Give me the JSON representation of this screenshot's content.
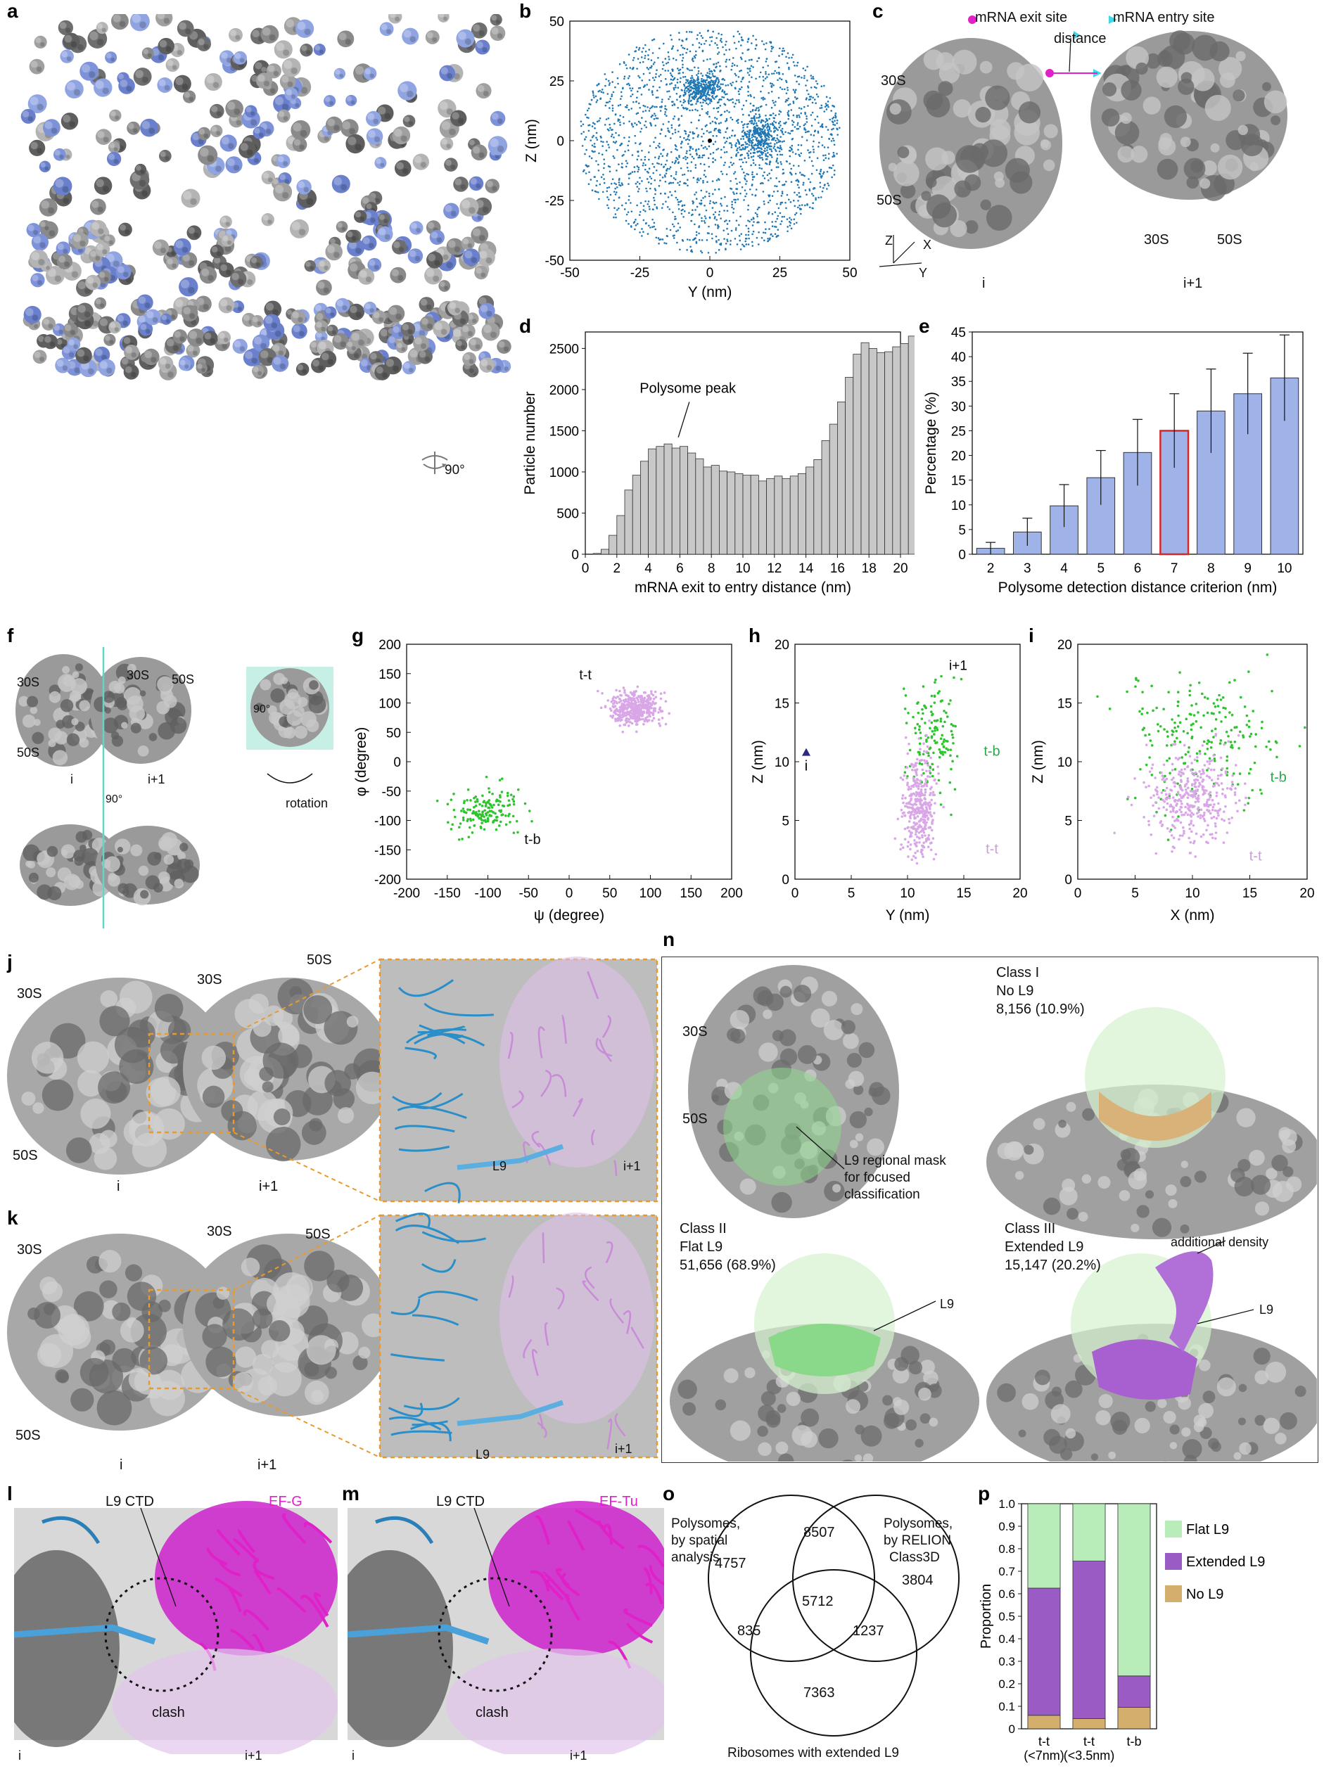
{
  "figure": {
    "panel_letters": [
      "a",
      "b",
      "c",
      "d",
      "e",
      "f",
      "g",
      "h",
      "i",
      "j",
      "k",
      "l",
      "m",
      "n",
      "o",
      "p"
    ],
    "a": {
      "rotation_label": "90°"
    },
    "c": {
      "legend_exit": "mRNA exit site",
      "legend_entry": "mRNA entry site",
      "distance_label": "distance",
      "left_30S": "30S",
      "left_50S": "50S",
      "right_30S": "30S",
      "right_50S": "50S",
      "axis_z": "Z",
      "axis_x": "X",
      "axis_y": "Y",
      "label_i": "i",
      "label_i1": "i+1",
      "colors": {
        "exit": "#e020c8",
        "entry": "#40d8e8"
      }
    },
    "f": {
      "left_30S": "30S",
      "left_50S": "50S",
      "mid_30S": "30S",
      "mid_50S": "50S",
      "label_i": "i",
      "label_i1": "i+1",
      "rot1": "90°",
      "rot2": "90°",
      "rotation": "rotation"
    },
    "j": {
      "s30_left": "30S",
      "s30_mid": "30S",
      "s50_right": "50S",
      "s50_left": "50S",
      "label_i": "i",
      "label_i1": "i+1",
      "inset_l9": "L9",
      "inset_i1": "i+1"
    },
    "k": {
      "s30_left": "30S",
      "s30_mid": "30S",
      "s50_right": "50S",
      "s50_left": "50S",
      "label_i": "i",
      "label_i1": "i+1",
      "inset_l9": "L9",
      "inset_i1": "i+1"
    },
    "l": {
      "l9ctd": "L9 CTD",
      "factor": "EF-G",
      "clash": "clash",
      "label_i": "i",
      "label_i1": "i+1"
    },
    "m": {
      "l9ctd": "L9 CTD",
      "factor": "EF-Tu",
      "clash": "clash",
      "label_i": "i",
      "label_i1": "i+1"
    },
    "n": {
      "s30": "30S",
      "s50": "50S",
      "mask_note_1": "L9 regional mask",
      "mask_note_2": "for focused",
      "mask_note_3": "classification",
      "class1_title": "Class I",
      "class1_sub": "No L9",
      "class1_count": "8,156 (10.9%)",
      "class2_title": "Class II",
      "class2_sub": "Flat L9",
      "class2_count": "51,656 (68.9%)",
      "class2_l9": "L9",
      "class3_title": "Class III",
      "class3_sub": "Extended L9",
      "class3_count": "15,147 (20.2%)",
      "class3_l9": "L9",
      "class3_extra": "additional density"
    },
    "o": {
      "set_a_1": "Polysomes,",
      "set_a_2": "by spatial",
      "set_a_3": "analysis",
      "set_b_1": "Polysomes,",
      "set_b_2": "by RELION",
      "set_b_3": "Class3D",
      "set_c": "Ribosomes with extended L9",
      "only_a": "4757",
      "ab": "8507",
      "only_b": "3804",
      "abc": "5712",
      "ac": "835",
      "bc": "1237",
      "only_c": "7363"
    }
  },
  "chart_data": [
    {
      "panel": "b",
      "type": "scatter",
      "xlabel": "Y (nm)",
      "ylabel": "Z (nm)",
      "xlim": [
        -50,
        50
      ],
      "ylim": [
        -50,
        50
      ],
      "xticks": [
        "-50",
        "-25",
        "0",
        "25",
        "50"
      ],
      "yticks": [
        "-50",
        "-25",
        "0",
        "25",
        "50"
      ],
      "point_color": "#1f77b4",
      "clusters": [
        {
          "x": -3,
          "y": 22
        },
        {
          "x": 18,
          "y": 2
        }
      ],
      "center_point": {
        "x": 0,
        "y": 0
      }
    },
    {
      "panel": "d",
      "type": "bar",
      "xlabel": "mRNA exit to entry distance (nm)",
      "ylabel": "Particle number",
      "xlim": [
        0,
        20
      ],
      "ylim": [
        0,
        2700
      ],
      "xticks": [
        "0",
        "2",
        "4",
        "6",
        "8",
        "10",
        "12",
        "14",
        "16",
        "18",
        "20"
      ],
      "yticks": [
        "0",
        "500",
        "1000",
        "1500",
        "2000",
        "2500"
      ],
      "bin_width": 0.5,
      "values": [
        0,
        10,
        60,
        230,
        470,
        780,
        960,
        1130,
        1280,
        1310,
        1340,
        1290,
        1310,
        1230,
        1160,
        1060,
        1080,
        1010,
        1000,
        980,
        960,
        960,
        890,
        920,
        950,
        920,
        950,
        980,
        1060,
        1150,
        1380,
        1580,
        1850,
        2150,
        2430,
        2570,
        2500,
        2450,
        2460,
        2520,
        2560,
        2650
      ],
      "annotation": "Polysome peak",
      "bar_color": "#c8c8c8"
    },
    {
      "panel": "e",
      "type": "bar",
      "xlabel": "Polysome detection distance criterion (nm)",
      "ylabel": "Percentage (%)",
      "ylim": [
        0,
        45
      ],
      "categories": [
        "2",
        "3",
        "4",
        "5",
        "6",
        "7",
        "8",
        "9",
        "10"
      ],
      "yticks": [
        "0",
        "5",
        "10",
        "15",
        "20",
        "25",
        "30",
        "35",
        "40",
        "45"
      ],
      "values": [
        1.2,
        4.5,
        9.8,
        15.5,
        20.6,
        25.0,
        29.0,
        32.5,
        35.7
      ],
      "errors": [
        1.2,
        2.8,
        4.3,
        5.5,
        6.7,
        7.5,
        8.5,
        8.2,
        8.7
      ],
      "highlight_category": "7",
      "bar_color": "#9fb3e8",
      "highlight_color": "#d62728"
    },
    {
      "panel": "g",
      "type": "scatter",
      "xlabel": "ψ (degree)",
      "ylabel": "φ (degree)",
      "xlim": [
        -200,
        200
      ],
      "ylim": [
        -200,
        200
      ],
      "xticks": [
        "-200",
        "-150",
        "-100",
        "-50",
        "0",
        "50",
        "100",
        "150",
        "200"
      ],
      "yticks": [
        "-200",
        "-150",
        "-100",
        "-50",
        "0",
        "50",
        "100",
        "150",
        "200"
      ],
      "series": [
        {
          "name": "t-t",
          "color": "#d9a6e8",
          "center": {
            "x": 80,
            "y": 90
          }
        },
        {
          "name": "t-b",
          "color": "#2ec42e",
          "center": {
            "x": -105,
            "y": -85
          }
        }
      ]
    },
    {
      "panel": "h",
      "type": "scatter",
      "xlabel": "Y (nm)",
      "ylabel": "Z (nm)",
      "xlim": [
        0,
        20
      ],
      "ylim": [
        0,
        20
      ],
      "xticks": [
        "0",
        "5",
        "10",
        "15",
        "20"
      ],
      "yticks": [
        "0",
        "5",
        "10",
        "15",
        "20"
      ],
      "series": [
        {
          "name": "t-b",
          "color": "#2ec42e",
          "center": {
            "x": 12.2,
            "y": 12.5
          }
        },
        {
          "name": "t-t",
          "color": "#d9a6e8",
          "center": {
            "x": 11,
            "y": 6
          }
        }
      ],
      "marker_i": {
        "label": "i",
        "x": 1,
        "y": 10.8
      },
      "marker_i1": {
        "label": "i+1",
        "x": 14.5,
        "y": 19
      }
    },
    {
      "panel": "i",
      "type": "scatter",
      "xlabel": "X (nm)",
      "ylabel": "Z (nm)",
      "xlim": [
        0,
        20
      ],
      "ylim": [
        0,
        20
      ],
      "xticks": [
        "0",
        "5",
        "10",
        "15",
        "20"
      ],
      "yticks": [
        "0",
        "5",
        "10",
        "15",
        "20"
      ],
      "series": [
        {
          "name": "t-b",
          "color": "#2ec42e",
          "center": {
            "x": 11,
            "y": 12
          }
        },
        {
          "name": "t-t",
          "color": "#d9a6e8",
          "center": {
            "x": 10,
            "y": 7
          }
        }
      ]
    },
    {
      "panel": "p",
      "type": "bar",
      "ylabel": "Proportion",
      "ylim": [
        0,
        1.0
      ],
      "categories": [
        "t-t\n(<7nm)",
        "t-t\n(<3.5nm)",
        "t-b"
      ],
      "yticks": [
        "0",
        "0.1",
        "0.2",
        "0.3",
        "0.4",
        "0.5",
        "0.6",
        "0.7",
        "0.8",
        "0.9",
        "1.0"
      ],
      "series": [
        {
          "name": "No L9",
          "color": "#d4ae6c",
          "values": [
            0.06,
            0.045,
            0.095
          ]
        },
        {
          "name": "Extended L9",
          "color": "#9a5cc4",
          "values": [
            0.565,
            0.7,
            0.14
          ]
        },
        {
          "name": "Flat L9",
          "color": "#b8ecb8",
          "values": [
            0.375,
            0.255,
            0.765
          ]
        }
      ],
      "legend": [
        "Flat L9",
        "Extended L9",
        "No L9"
      ]
    }
  ]
}
